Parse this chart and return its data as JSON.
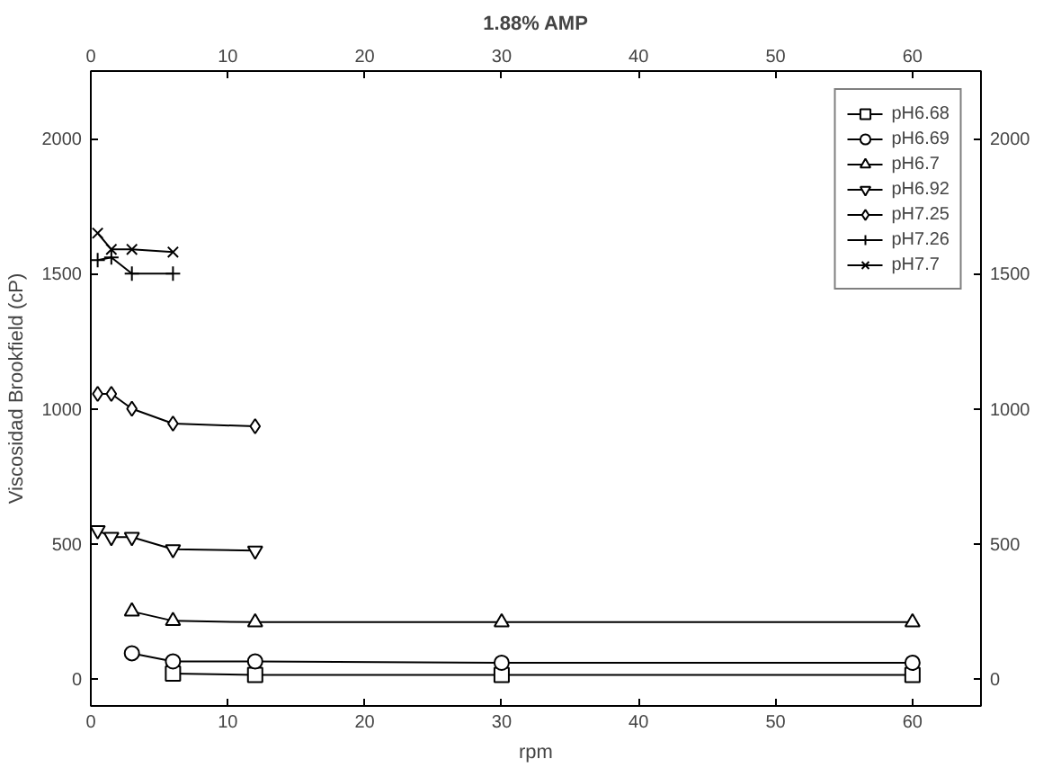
{
  "chart_data": {
    "type": "line",
    "title": "1.88% AMP",
    "xlabel": "rpm",
    "ylabel": "Viscosidad Brookfield (cP)",
    "xlim": [
      0,
      65
    ],
    "xticks": [
      0,
      10,
      20,
      30,
      40,
      50,
      60
    ],
    "x2lim": [
      0,
      65
    ],
    "x2ticks": [
      0,
      10,
      20,
      30,
      40,
      50,
      60
    ],
    "ylim": [
      -100,
      2250
    ],
    "yticks": [
      0,
      500,
      1000,
      1500,
      2000
    ],
    "y2lim": [
      -100,
      2250
    ],
    "y2ticks": [
      0,
      500,
      1000,
      1500,
      2000
    ],
    "grid": false,
    "legend": "top right",
    "line_style": "solid",
    "series": [
      {
        "name": "pH6.68",
        "color": "#000000",
        "marker": "square",
        "x": [
          6,
          12,
          30,
          60
        ],
        "values": [
          20,
          15,
          15,
          15
        ]
      },
      {
        "name": "pH6.69",
        "color": "#000000",
        "marker": "circle",
        "x": [
          3,
          6,
          12,
          30,
          60
        ],
        "values": [
          95,
          65,
          65,
          60,
          60
        ]
      },
      {
        "name": "pH6.7",
        "color": "#000000",
        "marker": "triangle",
        "x": [
          3,
          6,
          12,
          30,
          60
        ],
        "values": [
          250,
          215,
          210,
          210,
          210
        ]
      },
      {
        "name": "pH6.92",
        "color": "#000000",
        "marker": "triangle",
        "x": [
          0.5,
          1.5,
          3,
          6,
          12
        ],
        "values": [
          550,
          525,
          525,
          480,
          475
        ]
      },
      {
        "name": "pH7.25",
        "color": "#000000",
        "marker": "diamond",
        "x": [
          0.5,
          1.5,
          3,
          6,
          12
        ],
        "values": [
          1055,
          1055,
          1000,
          945,
          935
        ]
      },
      {
        "name": "pH7.26",
        "color": "#000000",
        "marker": "cross",
        "x": [
          0.5,
          1.5,
          3,
          6
        ],
        "values": [
          1550,
          1560,
          1500,
          1500
        ]
      },
      {
        "name": "pH7.7",
        "color": "#000000",
        "marker": "x",
        "x": [
          0.5,
          1.5,
          3,
          6
        ],
        "values": [
          1650,
          1590,
          1590,
          1580
        ]
      }
    ]
  }
}
